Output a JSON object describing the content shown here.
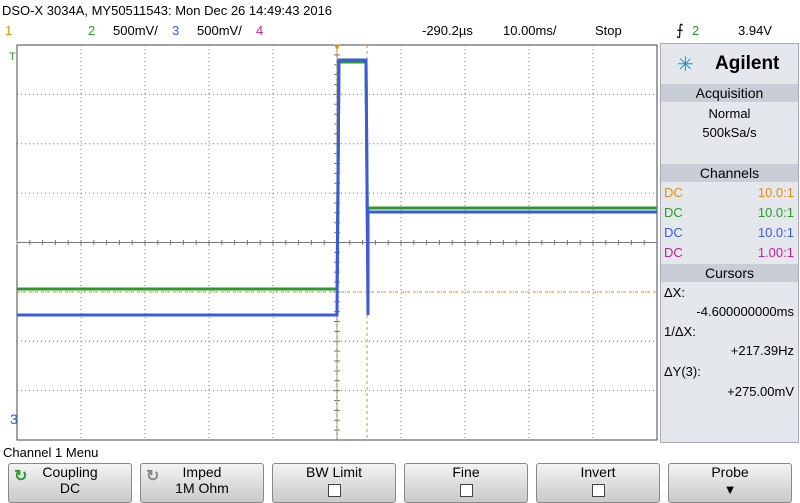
{
  "header": {
    "title": "DSO-X 3034A, MY50511543: Mon Dec 26 14:49:43 2016"
  },
  "status_bar": {
    "ch1": "1",
    "ch2": "2",
    "ch2_scale": "500mV/",
    "ch3": "3",
    "ch3_scale": "500mV/",
    "ch4": "4",
    "delay": "-290.2µs",
    "timebase": "10.00ms/",
    "run_state": "Stop",
    "trigger_source": "2",
    "trigger_level": "3.94V"
  },
  "screen": {
    "ground_marker": "3"
  },
  "panel": {
    "brand": "Agilent",
    "acquisition": {
      "title": "Acquisition",
      "mode": "Normal",
      "rate": "500kSa/s"
    },
    "channels": {
      "title": "Channels",
      "rows": [
        [
          "DC",
          "10.0:1"
        ],
        [
          "DC",
          "10.0:1"
        ],
        [
          "DC",
          "10.0:1"
        ],
        [
          "DC",
          "1.00:1"
        ]
      ]
    },
    "cursors": {
      "title": "Cursors",
      "dx_label": "ΔX:",
      "dx": "-4.600000000ms",
      "inv_dx_label": "1/ΔX:",
      "inv_dx": "+217.39Hz",
      "dy_label": "ΔY(3):",
      "dy": "+275.00mV"
    }
  },
  "menu": {
    "title": "Channel 1 Menu",
    "softkeys": [
      {
        "label": "Coupling",
        "value": "DC"
      },
      {
        "label": "Imped",
        "value": "1M Ohm"
      },
      {
        "label": "BW Limit"
      },
      {
        "label": "Fine"
      },
      {
        "label": "Invert"
      },
      {
        "label": "Probe"
      }
    ]
  }
}
